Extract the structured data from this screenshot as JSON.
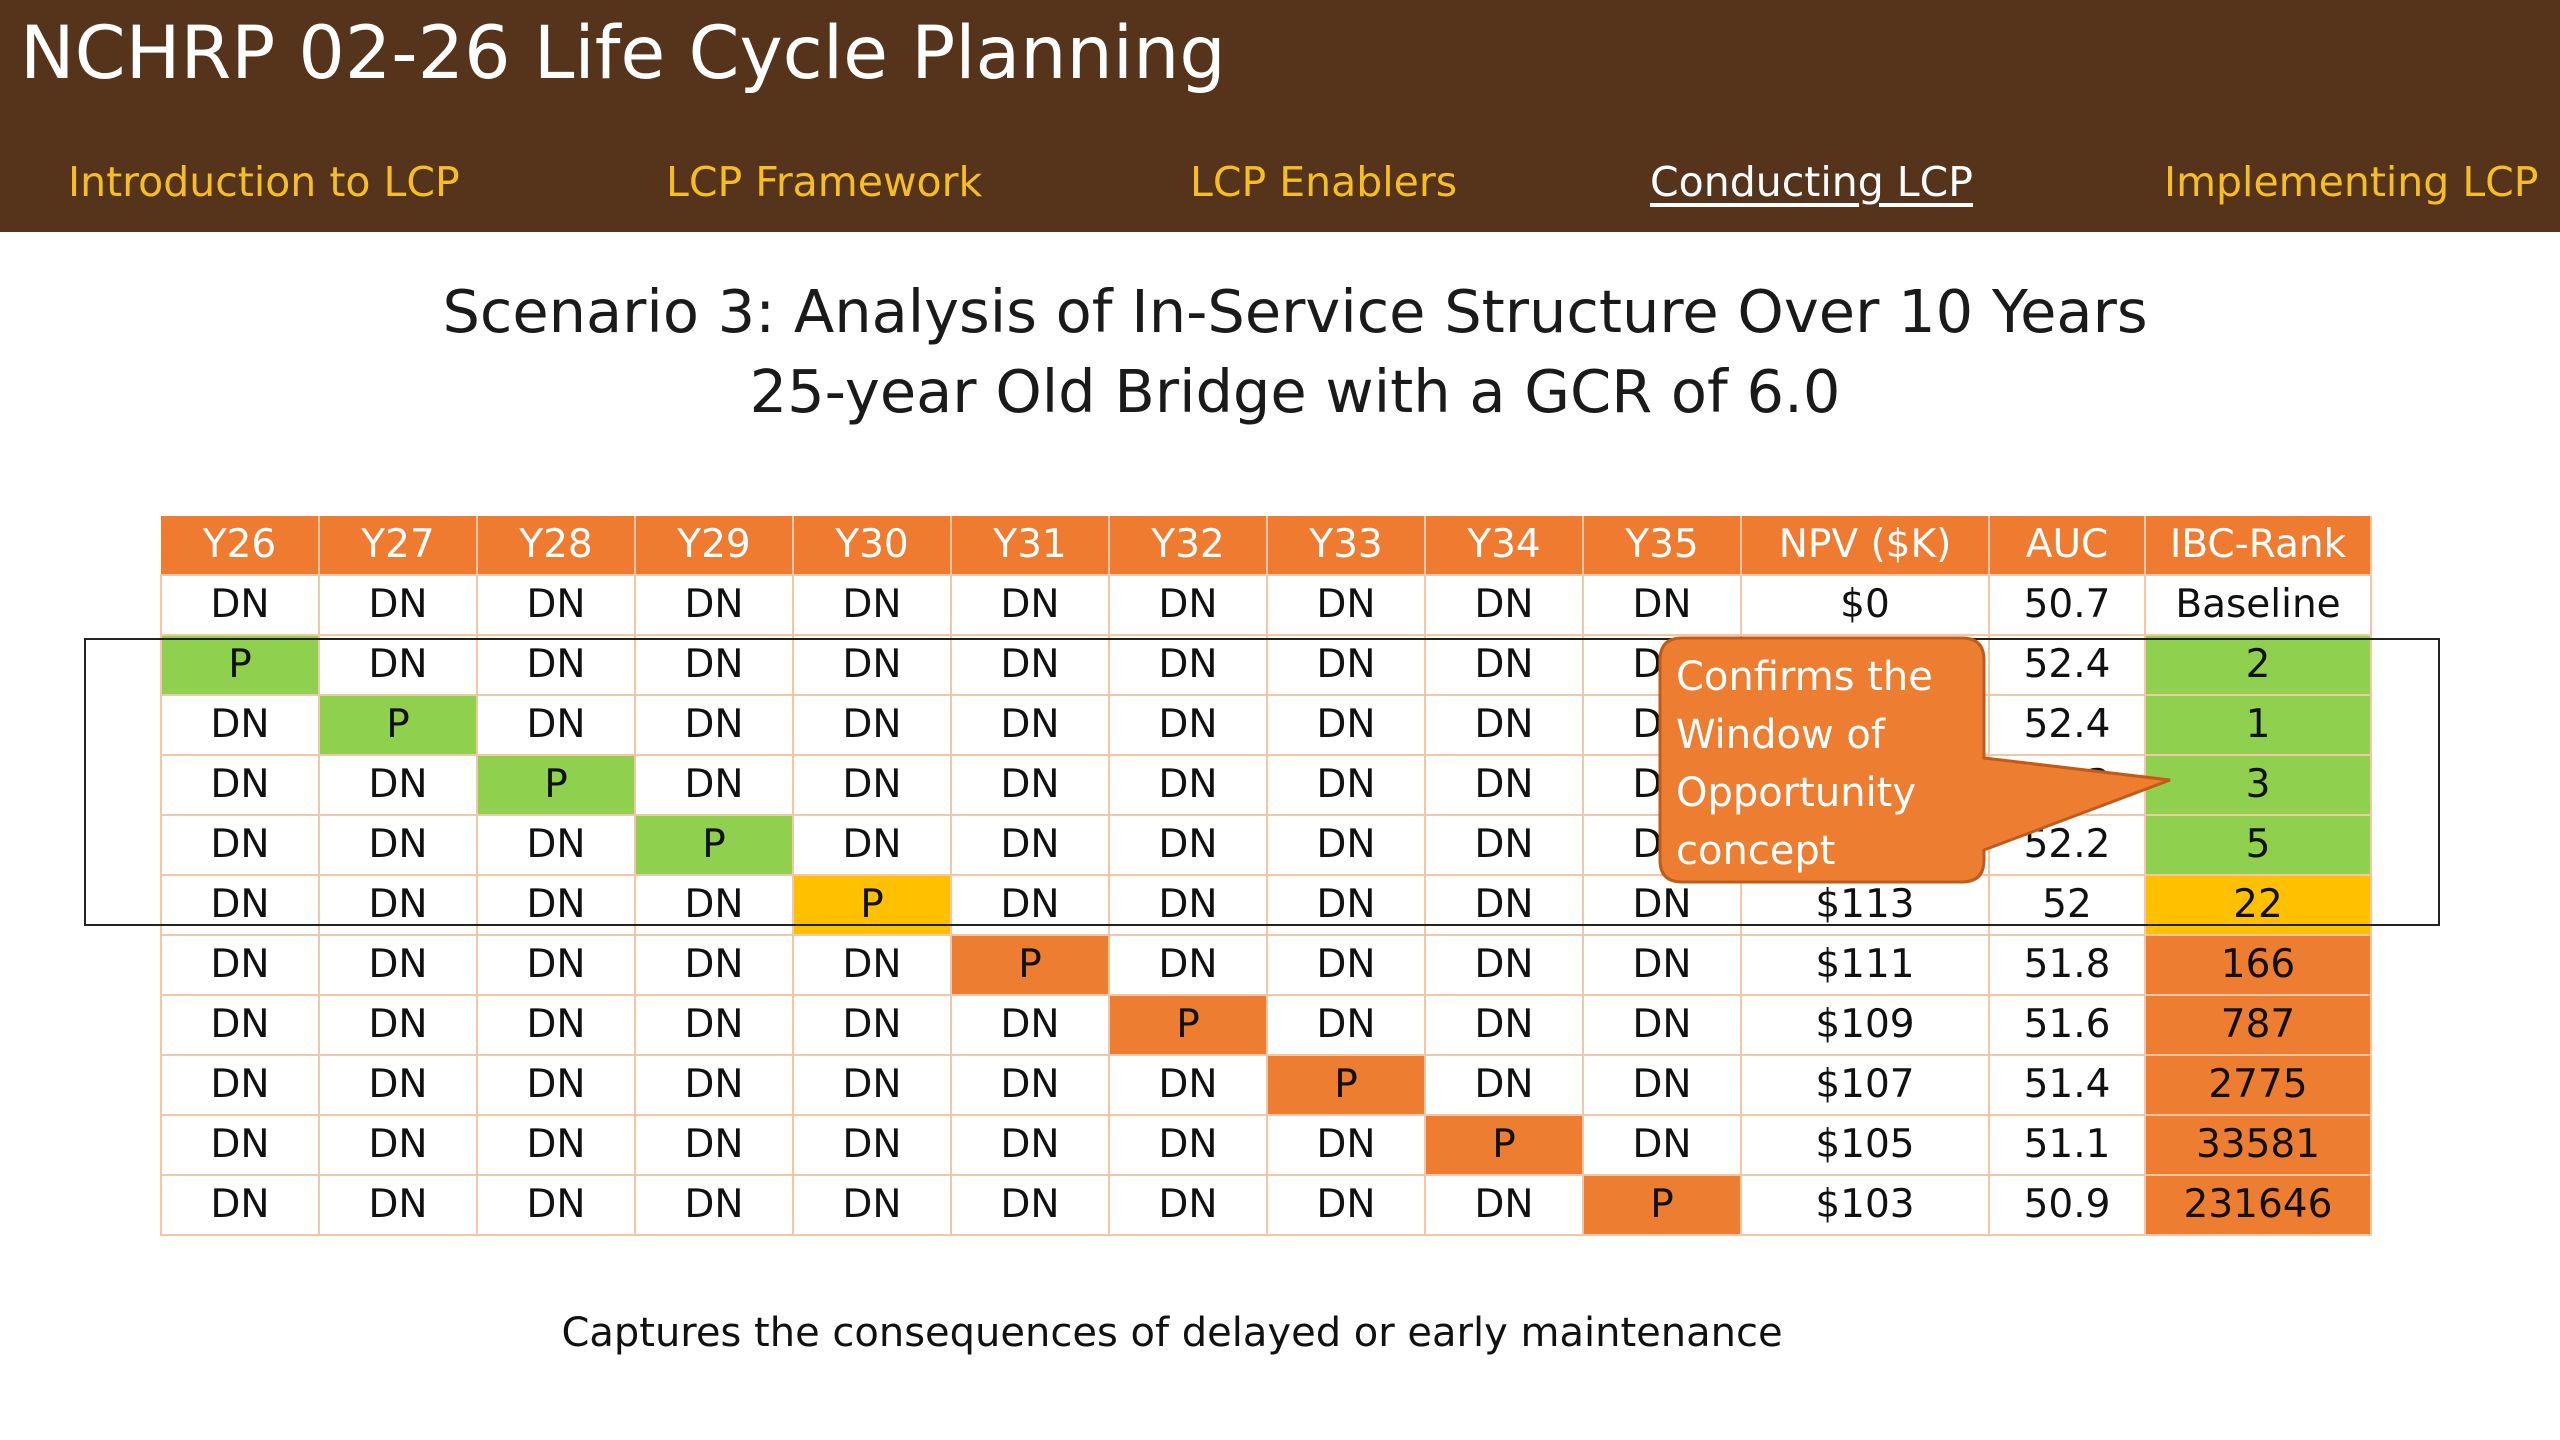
{
  "header": {
    "title": "NCHRP 02-26 Life Cycle Planning",
    "nav": [
      {
        "label": "Introduction to LCP",
        "active": false
      },
      {
        "label": "LCP  Framework",
        "active": false
      },
      {
        "label": "LCP Enablers",
        "active": false
      },
      {
        "label": "Conducting LCP",
        "active": true
      },
      {
        "label": "Implementing LCP",
        "active": false
      }
    ]
  },
  "slide": {
    "title_line1": "Scenario 3: Analysis of In-Service Structure Over 10 Years",
    "title_line2": "25-year Old Bridge with a GCR of 6.0"
  },
  "table": {
    "columns": [
      "Y26",
      "Y27",
      "Y28",
      "Y29",
      "Y30",
      "Y31",
      "Y32",
      "Y33",
      "Y34",
      "Y35",
      "NPV ($K)",
      "AUC",
      "IBC-Rank"
    ],
    "rows": [
      {
        "cells": [
          "DN",
          "DN",
          "DN",
          "DN",
          "DN",
          "DN",
          "DN",
          "DN",
          "DN",
          "DN"
        ],
        "npv": "$0",
        "auc": "50.7",
        "rank": "Baseline"
      },
      {
        "cells": [
          "P",
          "DN",
          "DN",
          "DN",
          "DN",
          "DN",
          "DN",
          "DN",
          "DN",
          "DN"
        ],
        "npv": "",
        "auc": "52.4",
        "rank": "2"
      },
      {
        "cells": [
          "DN",
          "P",
          "DN",
          "DN",
          "DN",
          "DN",
          "DN",
          "DN",
          "DN",
          "DN"
        ],
        "npv": "",
        "auc": "52.4",
        "rank": "1"
      },
      {
        "cells": [
          "DN",
          "DN",
          "P",
          "DN",
          "DN",
          "DN",
          "DN",
          "DN",
          "DN",
          "DN"
        ],
        "npv": "",
        "auc": "52.3",
        "rank": "3"
      },
      {
        "cells": [
          "DN",
          "DN",
          "DN",
          "P",
          "DN",
          "DN",
          "DN",
          "DN",
          "DN",
          "DN"
        ],
        "npv": "",
        "auc": "52.2",
        "rank": "5"
      },
      {
        "cells": [
          "DN",
          "DN",
          "DN",
          "DN",
          "P",
          "DN",
          "DN",
          "DN",
          "DN",
          "DN"
        ],
        "npv": "$113",
        "auc": "52",
        "rank": "22"
      },
      {
        "cells": [
          "DN",
          "DN",
          "DN",
          "DN",
          "DN",
          "P",
          "DN",
          "DN",
          "DN",
          "DN"
        ],
        "npv": "$111",
        "auc": "51.8",
        "rank": "166"
      },
      {
        "cells": [
          "DN",
          "DN",
          "DN",
          "DN",
          "DN",
          "DN",
          "P",
          "DN",
          "DN",
          "DN"
        ],
        "npv": "$109",
        "auc": "51.6",
        "rank": "787"
      },
      {
        "cells": [
          "DN",
          "DN",
          "DN",
          "DN",
          "DN",
          "DN",
          "DN",
          "P",
          "DN",
          "DN"
        ],
        "npv": "$107",
        "auc": "51.4",
        "rank": "2775"
      },
      {
        "cells": [
          "DN",
          "DN",
          "DN",
          "DN",
          "DN",
          "DN",
          "DN",
          "DN",
          "P",
          "DN"
        ],
        "npv": "$105",
        "auc": "51.1",
        "rank": "33581"
      },
      {
        "cells": [
          "DN",
          "DN",
          "DN",
          "DN",
          "DN",
          "DN",
          "DN",
          "DN",
          "DN",
          "P"
        ],
        "npv": "$103",
        "auc": "50.9",
        "rank": "231646"
      }
    ],
    "colors": {
      "green": "#8fd14f",
      "gold": "#ffc000",
      "orange": "#ed7d31",
      "header": "#ef7b31"
    }
  },
  "callout": {
    "lines": [
      "Confirms the",
      "Window of",
      "Opportunity",
      "concept"
    ],
    "color": "#ed7d31"
  },
  "caption": "Captures the consequences of delayed or early maintenance"
}
